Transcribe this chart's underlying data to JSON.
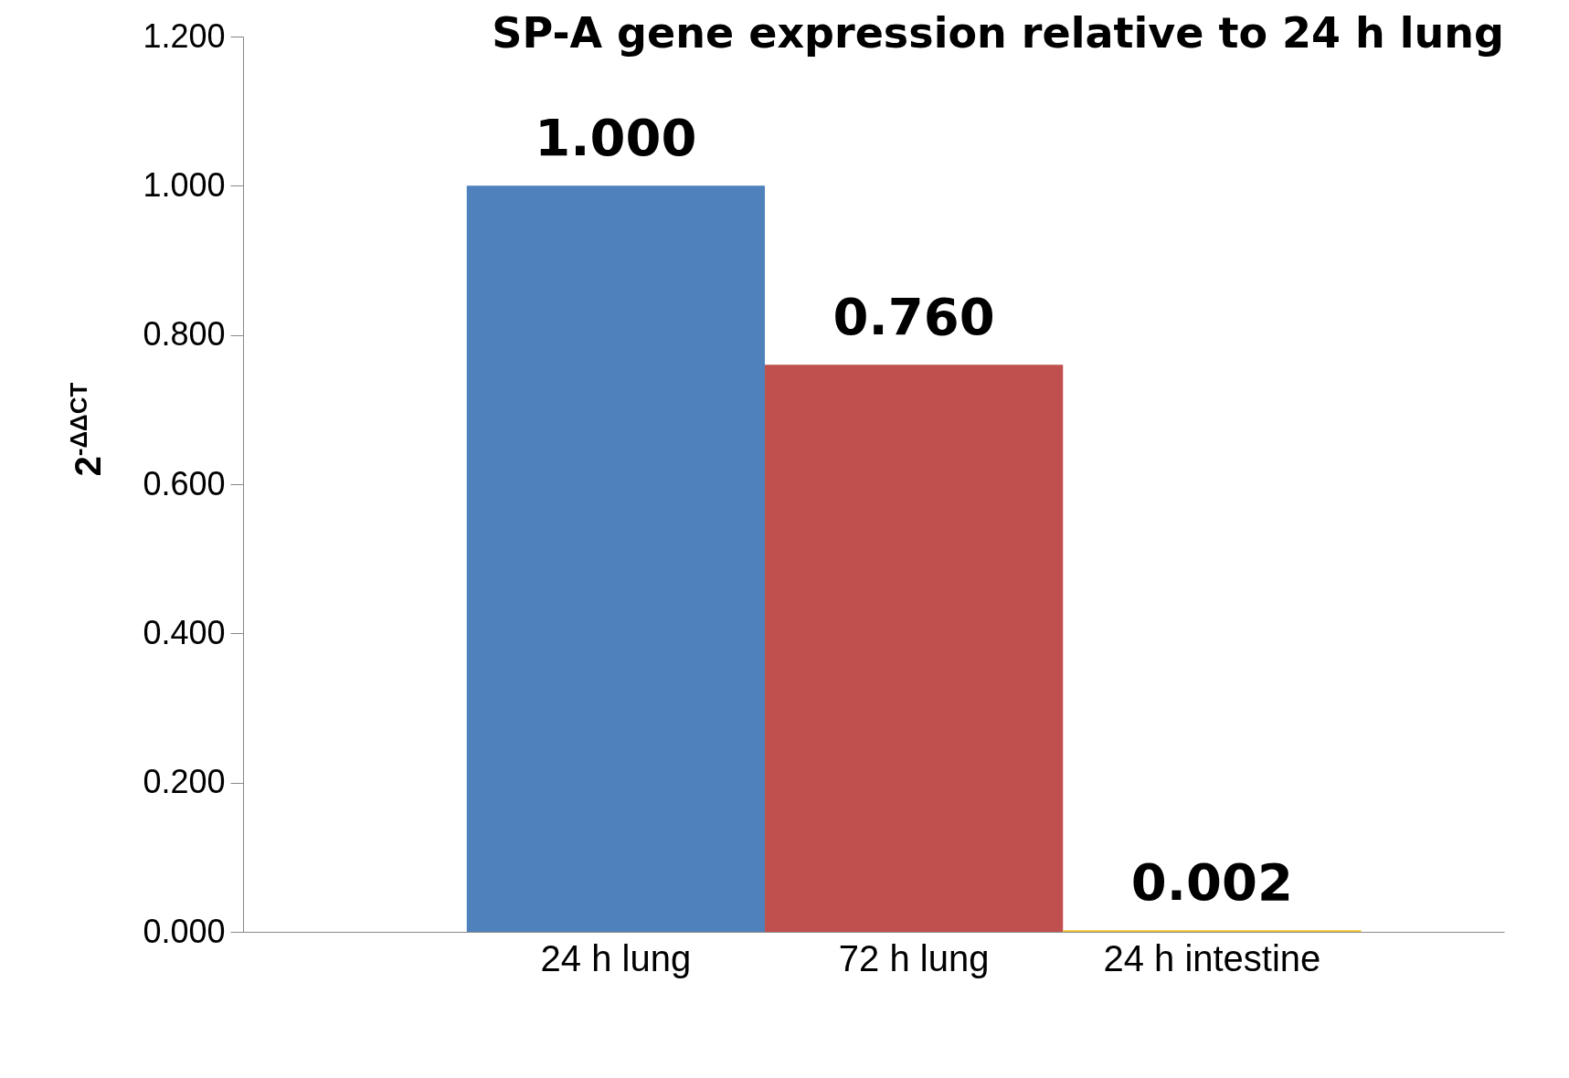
{
  "chart_data": {
    "type": "bar",
    "title": "SP-A gene expression relative to 24 h lung",
    "ylabel": "2$^{-ΔΔCT}$",
    "categories": [
      "24 h lung",
      "72 h lung",
      "24 h intestine"
    ],
    "values": [
      1.0,
      0.76,
      0.002
    ],
    "colors": [
      "#4f81bd",
      "#c0504d",
      "#f2c12e"
    ],
    "value_labels": [
      "1.000",
      "0.760",
      "0.002"
    ],
    "ylim": [
      0,
      1.2
    ],
    "yticks": [
      {
        "value": 0,
        "label": "0.000"
      },
      {
        "value": 0.2,
        "label": "0.200"
      },
      {
        "value": 0.4,
        "label": "0.400"
      },
      {
        "value": 0.6,
        "label": "0.600"
      },
      {
        "value": 0.8,
        "label": "0.800"
      },
      {
        "value": 1.0,
        "label": "1.000"
      },
      {
        "value": 1.2,
        "label": "1.200"
      }
    ],
    "grid": false
  }
}
